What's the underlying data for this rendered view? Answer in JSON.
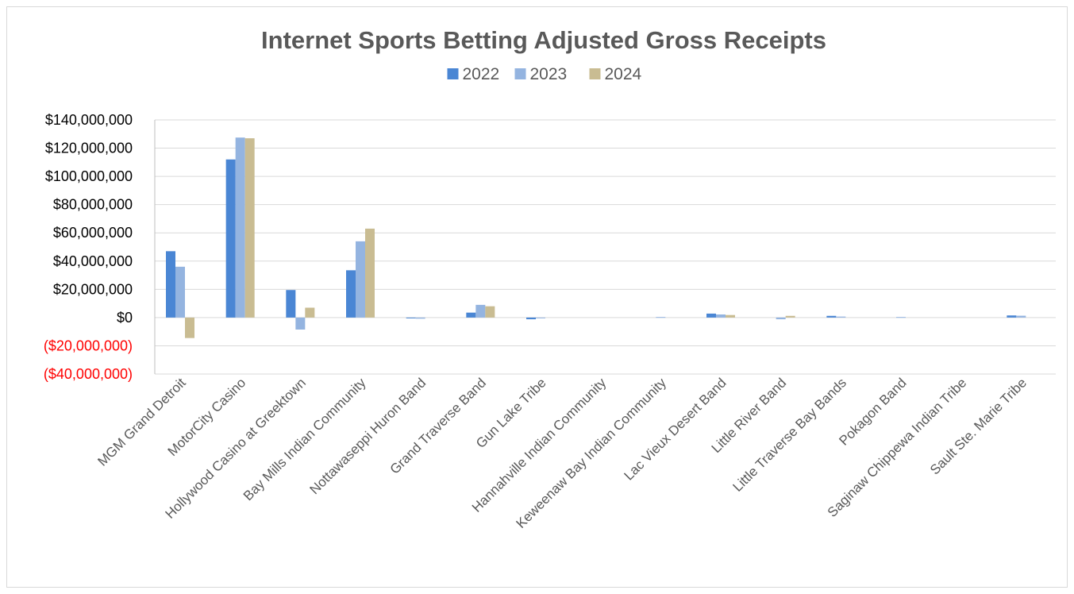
{
  "chart_data": {
    "type": "bar",
    "title": "Internet Sports Betting Adjusted Gross Receipts",
    "xlabel": "",
    "ylabel": "",
    "ylim": [
      -40000000,
      140000000
    ],
    "y_tick_step": 20000000,
    "y_ticks": [
      {
        "value": 140000000,
        "label": "$140,000,000"
      },
      {
        "value": 120000000,
        "label": "$120,000,000"
      },
      {
        "value": 100000000,
        "label": "$100,000,000"
      },
      {
        "value": 80000000,
        "label": "$80,000,000"
      },
      {
        "value": 60000000,
        "label": "$60,000,000"
      },
      {
        "value": 40000000,
        "label": "$40,000,000"
      },
      {
        "value": 20000000,
        "label": "$20,000,000"
      },
      {
        "value": 0,
        "label": "$0"
      },
      {
        "value": -20000000,
        "label": "($20,000,000)"
      },
      {
        "value": -40000000,
        "label": "($40,000,000)"
      }
    ],
    "negative_label_color": "#ff0000",
    "grid": true,
    "legend": "top-center",
    "categories": [
      "MGM Grand Detroit",
      "MotorCity Casino",
      "Hollywood Casino at Greektown",
      "Bay Mills Indian Community",
      "Nottawaseppi Huron Band",
      "Grand Traverse Band",
      "Gun Lake Tribe",
      "Hannahville Indian Community",
      "Keweenaw Bay Indian Community",
      "Lac Vieux Desert Band",
      "Little River Band",
      "Little Traverse Bay Bands",
      "Pokagon Band",
      "Saginaw Chippewa Indian Tribe",
      "Sault Ste. Marie Tribe"
    ],
    "series": [
      {
        "name": "2022",
        "color": "#4a86d4",
        "values": [
          47000000,
          112000000,
          19500000,
          33500000,
          -300000,
          3500000,
          -1200000,
          0,
          0,
          2800000,
          0,
          1200000,
          0,
          0,
          1500000
        ]
      },
      {
        "name": "2023",
        "color": "#94b4e0",
        "values": [
          36000000,
          127500000,
          -8500000,
          54000000,
          -800000,
          9000000,
          -500000,
          0,
          400000,
          2200000,
          -1200000,
          700000,
          400000,
          0,
          1300000
        ]
      },
      {
        "name": "2024",
        "color": "#c9bc92",
        "values": [
          -14500000,
          127000000,
          7000000,
          63000000,
          0,
          8000000,
          0,
          0,
          0,
          1800000,
          1200000,
          0,
          0,
          0,
          0
        ]
      }
    ]
  }
}
